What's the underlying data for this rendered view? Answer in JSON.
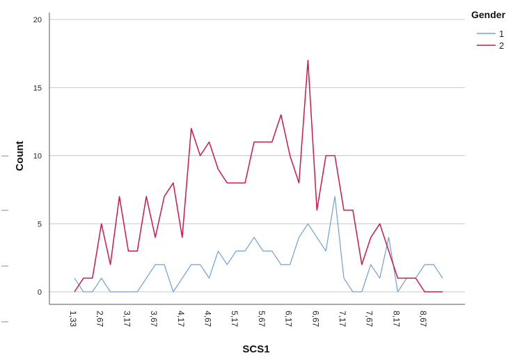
{
  "chart_data": {
    "type": "line",
    "xlabel": "SCS1",
    "ylabel": "Count",
    "ylim": [
      0,
      20
    ],
    "yticks": [
      0,
      5,
      10,
      15,
      20
    ],
    "grid": true,
    "legend": {
      "title": "Gender",
      "placement": "top-right"
    },
    "x_tick_labels": [
      "1,33",
      "2,67",
      "3,17",
      "3,67",
      "4,17",
      "4,67",
      "5,17",
      "5,67",
      "6,17",
      "6,67",
      "7,17",
      "7,67",
      "8,17",
      "8,67"
    ],
    "x": [
      "1,33",
      "1,50",
      "1,67",
      "1,83",
      "2,00",
      "2,17",
      "2,33",
      "2,50",
      "2,67",
      "2,83",
      "3,00",
      "3,17",
      "3,33",
      "3,50",
      "3,67",
      "3,83",
      "4,00",
      "4,17",
      "4,33",
      "4,50",
      "4,67",
      "4,83",
      "5,00",
      "5,17",
      "5,33",
      "5,50",
      "5,67",
      "5,83",
      "6,00",
      "6,17",
      "6,33",
      "6,50",
      "6,67",
      "6,83",
      "7,00",
      "7,17",
      "7,33",
      "7,50",
      "7,67",
      "7,83",
      "8,00",
      "8,17",
      "8,33",
      "8,50",
      "8,67"
    ],
    "series": [
      {
        "name": "1",
        "color": "#6f9fd8",
        "values": [
          1,
          0,
          0,
          1,
          0,
          0,
          0,
          0,
          1,
          2,
          2,
          0,
          1,
          2,
          2,
          1,
          3,
          2,
          3,
          3,
          4,
          3,
          3,
          2,
          2,
          4,
          5,
          4,
          3,
          7,
          1,
          0,
          0,
          2,
          1,
          4,
          0,
          1,
          1,
          2,
          2,
          1,
          null,
          null,
          null
        ]
      },
      {
        "name": "2",
        "color": "#d0164a",
        "values": [
          0,
          1,
          1,
          5,
          2,
          7,
          3,
          3,
          7,
          4,
          7,
          8,
          4,
          12,
          10,
          11,
          9,
          8,
          8,
          8,
          11,
          11,
          11,
          13,
          10,
          8,
          17,
          6,
          10,
          10,
          6,
          6,
          2,
          4,
          5,
          3,
          1,
          1,
          1,
          0,
          0,
          0,
          null,
          null,
          null
        ]
      }
    ]
  }
}
